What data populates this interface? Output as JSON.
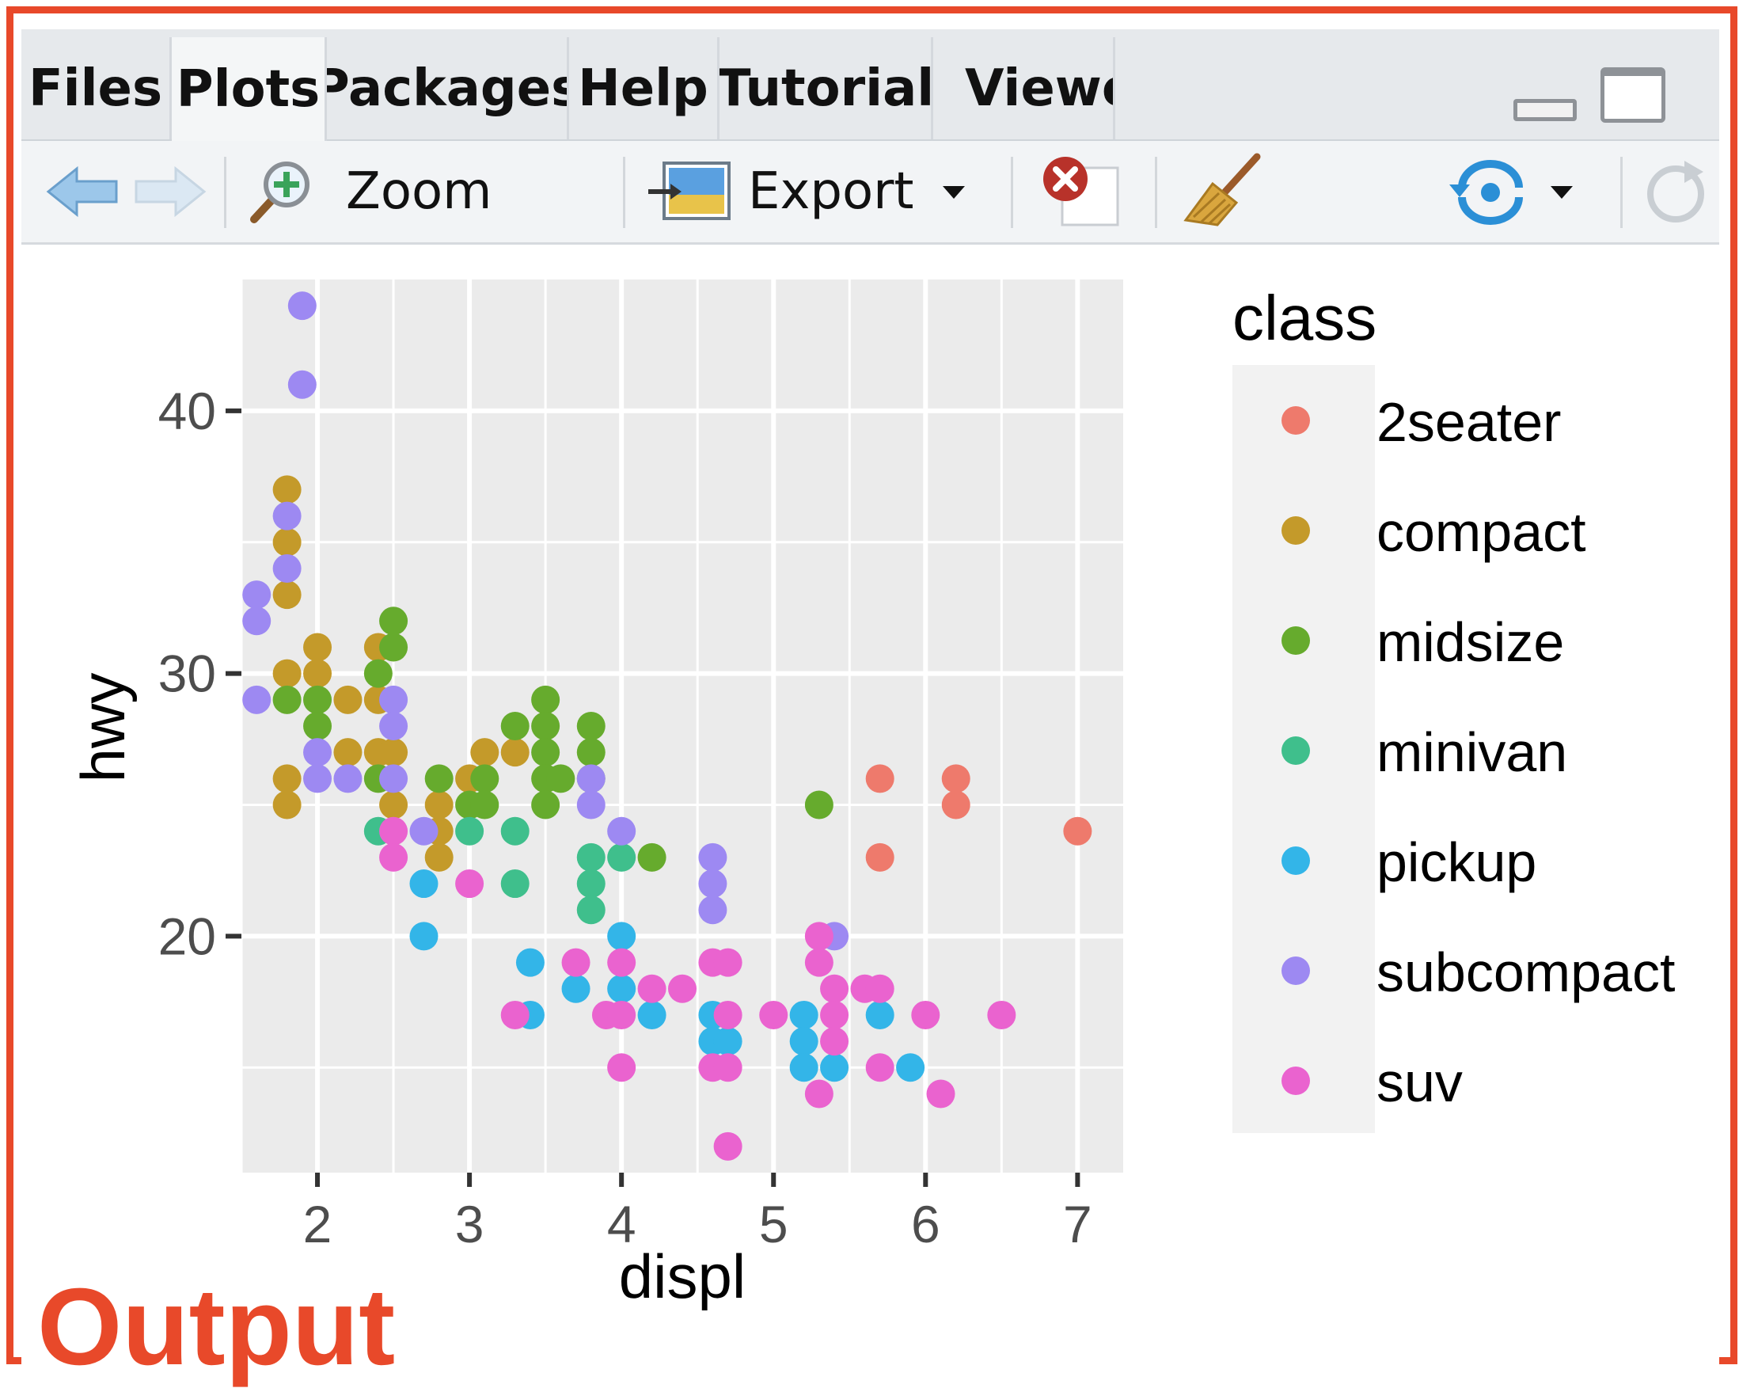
{
  "tabs": [
    {
      "label": "Files",
      "active": false
    },
    {
      "label": "Plots",
      "active": true
    },
    {
      "label": "Packages",
      "active": false
    },
    {
      "label": "Help",
      "active": false
    },
    {
      "label": "Tutorial",
      "active": false
    },
    {
      "label": "Viewe",
      "active": false
    }
  ],
  "toolbar": {
    "zoom_label": "Zoom",
    "export_label": "Export",
    "icons": [
      "back-arrow-icon",
      "forward-arrow-icon",
      "zoom-icon",
      "export-icon",
      "remove-plot-icon",
      "broom-icon",
      "refresh-icon",
      "sync-icon"
    ]
  },
  "output_label": "Output",
  "colors": {
    "2seater": "#ee7a6c",
    "compact": "#c49a2a",
    "midsize": "#66ab2d",
    "minivan": "#3fbf8c",
    "pickup": "#33b5e8",
    "subcompact": "#9d89f2",
    "suv": "#ea63cf",
    "panel": "#ebebeb",
    "accent": "#e8492a"
  },
  "chart_data": {
    "type": "scatter",
    "title": "",
    "xlabel": "displ",
    "ylabel": "hwy",
    "xlim": [
      1.5,
      7.3
    ],
    "ylim": [
      11,
      45
    ],
    "xticks": [
      2,
      3,
      4,
      5,
      6,
      7
    ],
    "yticks": [
      20,
      30,
      40
    ],
    "grid": true,
    "legend": {
      "title": "class",
      "position": "right",
      "entries": [
        "2seater",
        "compact",
        "midsize",
        "minivan",
        "pickup",
        "subcompact",
        "suv"
      ]
    },
    "series": [
      {
        "name": "2seater",
        "points": [
          [
            5.7,
            26
          ],
          [
            5.7,
            23
          ],
          [
            6.2,
            26
          ],
          [
            6.2,
            25
          ],
          [
            7.0,
            24
          ]
        ]
      },
      {
        "name": "compact",
        "points": [
          [
            1.8,
            37
          ],
          [
            1.8,
            35
          ],
          [
            1.8,
            33
          ],
          [
            1.8,
            30
          ],
          [
            1.8,
            26
          ],
          [
            1.8,
            25
          ],
          [
            2.0,
            31
          ],
          [
            2.0,
            30
          ],
          [
            2.2,
            29
          ],
          [
            2.2,
            27
          ],
          [
            2.4,
            31
          ],
          [
            2.4,
            29
          ],
          [
            2.4,
            27
          ],
          [
            2.5,
            27
          ],
          [
            2.5,
            25
          ],
          [
            2.8,
            25
          ],
          [
            2.8,
            24
          ],
          [
            2.8,
            23
          ],
          [
            3.0,
            26
          ],
          [
            3.1,
            27
          ],
          [
            3.3,
            27
          ]
        ]
      },
      {
        "name": "midsize",
        "points": [
          [
            1.8,
            29
          ],
          [
            2.0,
            29
          ],
          [
            2.0,
            28
          ],
          [
            2.4,
            30
          ],
          [
            2.4,
            26
          ],
          [
            2.5,
            32
          ],
          [
            2.5,
            31
          ],
          [
            2.8,
            26
          ],
          [
            3.0,
            25
          ],
          [
            3.1,
            26
          ],
          [
            3.1,
            25
          ],
          [
            3.3,
            28
          ],
          [
            3.5,
            29
          ],
          [
            3.5,
            28
          ],
          [
            3.5,
            27
          ],
          [
            3.5,
            26
          ],
          [
            3.5,
            25
          ],
          [
            3.6,
            26
          ],
          [
            3.8,
            28
          ],
          [
            3.8,
            27
          ],
          [
            3.8,
            26
          ],
          [
            4.2,
            23
          ],
          [
            5.3,
            25
          ]
        ]
      },
      {
        "name": "minivan",
        "points": [
          [
            2.4,
            24
          ],
          [
            3.0,
            24
          ],
          [
            3.3,
            24
          ],
          [
            3.3,
            22
          ],
          [
            3.8,
            23
          ],
          [
            3.8,
            22
          ],
          [
            3.8,
            21
          ],
          [
            4.0,
            23
          ]
        ]
      },
      {
        "name": "pickup",
        "points": [
          [
            2.7,
            22
          ],
          [
            2.7,
            20
          ],
          [
            3.4,
            19
          ],
          [
            3.4,
            17
          ],
          [
            3.7,
            18
          ],
          [
            4.0,
            20
          ],
          [
            4.0,
            18
          ],
          [
            4.2,
            17
          ],
          [
            4.6,
            17
          ],
          [
            4.6,
            16
          ],
          [
            4.7,
            16
          ],
          [
            5.2,
            17
          ],
          [
            5.2,
            16
          ],
          [
            5.2,
            15
          ],
          [
            5.4,
            15
          ],
          [
            5.7,
            17
          ],
          [
            5.9,
            15
          ]
        ]
      },
      {
        "name": "subcompact",
        "points": [
          [
            1.6,
            33
          ],
          [
            1.6,
            32
          ],
          [
            1.6,
            29
          ],
          [
            1.8,
            36
          ],
          [
            1.8,
            34
          ],
          [
            1.9,
            44
          ],
          [
            1.9,
            41
          ],
          [
            2.0,
            27
          ],
          [
            2.0,
            26
          ],
          [
            2.2,
            26
          ],
          [
            2.5,
            29
          ],
          [
            2.5,
            28
          ],
          [
            2.5,
            26
          ],
          [
            2.7,
            24
          ],
          [
            3.8,
            25
          ],
          [
            3.8,
            26
          ],
          [
            4.0,
            24
          ],
          [
            4.6,
            23
          ],
          [
            4.6,
            22
          ],
          [
            4.6,
            21
          ],
          [
            5.4,
            20
          ]
        ]
      },
      {
        "name": "suv",
        "points": [
          [
            2.5,
            24
          ],
          [
            2.5,
            23
          ],
          [
            3.0,
            22
          ],
          [
            3.3,
            17
          ],
          [
            3.7,
            19
          ],
          [
            3.9,
            17
          ],
          [
            4.0,
            19
          ],
          [
            4.0,
            17
          ],
          [
            4.0,
            15
          ],
          [
            4.2,
            18
          ],
          [
            4.4,
            18
          ],
          [
            4.6,
            19
          ],
          [
            4.6,
            15
          ],
          [
            4.7,
            19
          ],
          [
            4.7,
            17
          ],
          [
            4.7,
            15
          ],
          [
            4.7,
            12
          ],
          [
            5.0,
            17
          ],
          [
            5.3,
            20
          ],
          [
            5.3,
            19
          ],
          [
            5.3,
            14
          ],
          [
            5.4,
            18
          ],
          [
            5.4,
            17
          ],
          [
            5.4,
            16
          ],
          [
            5.6,
            18
          ],
          [
            5.7,
            18
          ],
          [
            5.7,
            15
          ],
          [
            6.0,
            17
          ],
          [
            6.1,
            14
          ],
          [
            6.5,
            17
          ]
        ]
      }
    ]
  }
}
